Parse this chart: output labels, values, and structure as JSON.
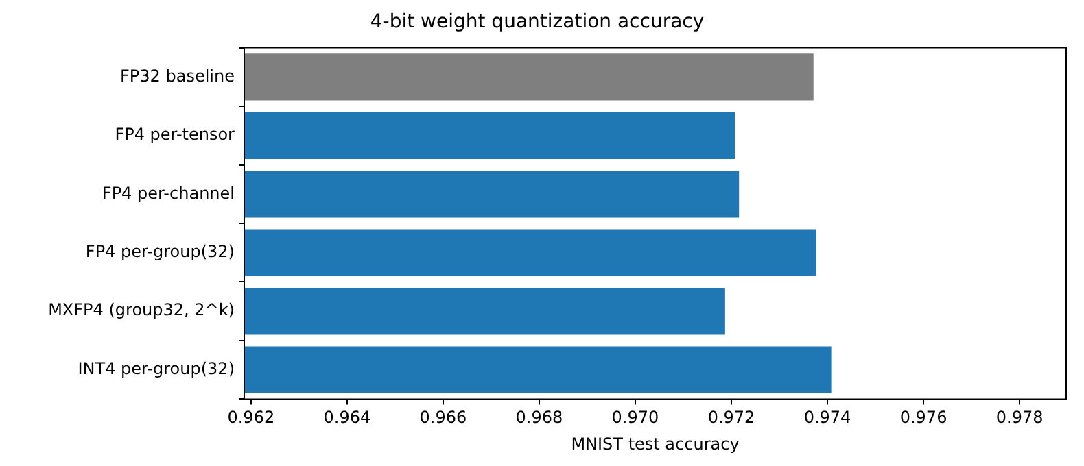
{
  "chart_data": {
    "type": "bar",
    "orientation": "horizontal",
    "title": "4-bit weight quantization accuracy",
    "xlabel": "MNIST test accuracy",
    "categories": [
      "FP32 baseline",
      "FP4 per-tensor",
      "FP4 per-channel",
      "FP4 per-group(32)",
      "MXFP4 (group32, 2^k)",
      "INT4 per-group(32)"
    ],
    "values": [
      0.97371,
      0.97208,
      0.97216,
      0.97376,
      0.97187,
      0.97408
    ],
    "colors": [
      "#7f7f7f",
      "#1f77b4",
      "#1f77b4",
      "#1f77b4",
      "#1f77b4",
      "#1f77b4"
    ],
    "xlim": [
      0.96186,
      0.97897
    ],
    "xticks": [
      0.962,
      0.964,
      0.966,
      0.968,
      {
        "value": 0.97,
        "label": "0.970"
      },
      0.972,
      0.974,
      0.976,
      0.978
    ],
    "grid": false,
    "legend": false
  }
}
